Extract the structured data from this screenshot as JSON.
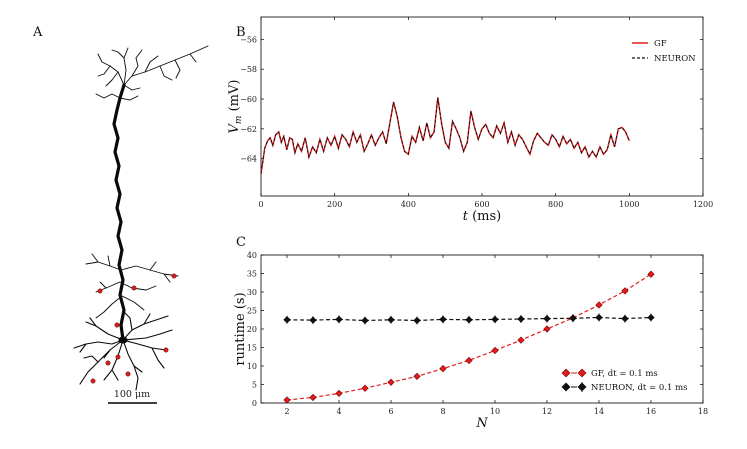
{
  "panels": {
    "a": "A",
    "b": "B",
    "c": "C"
  },
  "scale_bar": {
    "label": "100 μm"
  },
  "colors": {
    "gf": "#e31a1c",
    "neuron": "#111111",
    "dot": "#d62020",
    "morph": "#0a0a0a"
  },
  "chart_data": [
    {
      "id": "B",
      "type": "line",
      "title": "",
      "xlabel": "t (ms)",
      "ylabel": "V_m (mV)",
      "xlim": [
        0,
        1200
      ],
      "ylim": [
        -66.5,
        -54.5
      ],
      "xticks": [
        0,
        200,
        400,
        600,
        800,
        1000,
        1200
      ],
      "yticks": [
        -64,
        -62,
        -60,
        -58,
        -56
      ],
      "legend": {
        "position": "top-right",
        "entries": [
          "GF",
          "NEURON"
        ]
      },
      "series": [
        {
          "name": "GF",
          "style": "solid",
          "color": "#e31a1c",
          "x": [
            0,
            5,
            10,
            18,
            25,
            32,
            40,
            48,
            55,
            62,
            70,
            78,
            85,
            92,
            100,
            110,
            120,
            130,
            140,
            150,
            160,
            170,
            180,
            190,
            200,
            210,
            220,
            230,
            240,
            250,
            260,
            270,
            280,
            290,
            300,
            310,
            320,
            330,
            340,
            350,
            360,
            370,
            380,
            390,
            400,
            410,
            420,
            430,
            440,
            450,
            460,
            470,
            480,
            490,
            500,
            510,
            520,
            530,
            540,
            550,
            560,
            570,
            580,
            590,
            600,
            610,
            620,
            630,
            640,
            650,
            660,
            670,
            680,
            690,
            700,
            710,
            720,
            730,
            740,
            750,
            760,
            770,
            780,
            790,
            800,
            810,
            820,
            830,
            840,
            850,
            860,
            870,
            880,
            890,
            900,
            910,
            920,
            930,
            940,
            950,
            960,
            970,
            980,
            990,
            1000
          ],
          "values": [
            -65.0,
            -64.2,
            -63.3,
            -62.8,
            -62.6,
            -63.1,
            -62.4,
            -62.2,
            -62.9,
            -62.5,
            -63.4,
            -62.6,
            -62.7,
            -63.6,
            -63.0,
            -63.5,
            -62.6,
            -63.9,
            -63.2,
            -63.6,
            -62.7,
            -63.5,
            -62.6,
            -63.1,
            -62.5,
            -63.3,
            -62.4,
            -62.7,
            -63.2,
            -62.2,
            -62.9,
            -62.4,
            -63.5,
            -63.0,
            -62.4,
            -63.1,
            -62.6,
            -62.2,
            -63.0,
            -61.6,
            -60.2,
            -61.2,
            -62.6,
            -63.5,
            -63.7,
            -62.5,
            -62.9,
            -61.9,
            -62.8,
            -61.6,
            -62.6,
            -62.2,
            -59.9,
            -61.6,
            -62.9,
            -63.3,
            -61.5,
            -62.0,
            -62.6,
            -63.5,
            -62.9,
            -60.8,
            -61.9,
            -62.7,
            -62.0,
            -61.7,
            -62.3,
            -62.6,
            -61.8,
            -62.3,
            -61.6,
            -62.9,
            -62.2,
            -63.1,
            -62.4,
            -62.7,
            -63.2,
            -63.7,
            -62.8,
            -62.3,
            -62.6,
            -62.9,
            -63.1,
            -62.4,
            -62.7,
            -63.2,
            -62.5,
            -63.0,
            -62.7,
            -63.3,
            -62.9,
            -63.6,
            -63.2,
            -63.9,
            -63.5,
            -63.9,
            -63.2,
            -63.7,
            -63.4,
            -62.4,
            -63.2,
            -62.0,
            -61.9,
            -62.2,
            -62.8
          ]
        },
        {
          "name": "NEURON",
          "style": "dashed",
          "color": "#111111",
          "x": [
            0,
            5,
            10,
            18,
            25,
            32,
            40,
            48,
            55,
            62,
            70,
            78,
            85,
            92,
            100,
            110,
            120,
            130,
            140,
            150,
            160,
            170,
            180,
            190,
            200,
            210,
            220,
            230,
            240,
            250,
            260,
            270,
            280,
            290,
            300,
            310,
            320,
            330,
            340,
            350,
            360,
            370,
            380,
            390,
            400,
            410,
            420,
            430,
            440,
            450,
            460,
            470,
            480,
            490,
            500,
            510,
            520,
            530,
            540,
            550,
            560,
            570,
            580,
            590,
            600,
            610,
            620,
            630,
            640,
            650,
            660,
            670,
            680,
            690,
            700,
            710,
            720,
            730,
            740,
            750,
            760,
            770,
            780,
            790,
            800,
            810,
            820,
            830,
            840,
            850,
            860,
            870,
            880,
            890,
            900,
            910,
            920,
            930,
            940,
            950,
            960,
            970,
            980,
            990,
            1000
          ],
          "values": [
            -65.0,
            -64.2,
            -63.3,
            -62.8,
            -62.6,
            -63.1,
            -62.4,
            -62.2,
            -62.9,
            -62.5,
            -63.4,
            -62.6,
            -62.7,
            -63.6,
            -63.0,
            -63.5,
            -62.6,
            -63.9,
            -63.2,
            -63.6,
            -62.7,
            -63.5,
            -62.6,
            -63.1,
            -62.5,
            -63.3,
            -62.4,
            -62.7,
            -63.2,
            -62.2,
            -62.9,
            -62.4,
            -63.5,
            -63.0,
            -62.4,
            -63.1,
            -62.6,
            -62.2,
            -63.0,
            -61.6,
            -60.2,
            -61.2,
            -62.6,
            -63.5,
            -63.7,
            -62.5,
            -62.9,
            -61.9,
            -62.8,
            -61.6,
            -62.6,
            -62.2,
            -59.9,
            -61.6,
            -62.9,
            -63.3,
            -61.5,
            -62.0,
            -62.6,
            -63.5,
            -62.9,
            -60.8,
            -61.9,
            -62.7,
            -62.0,
            -61.7,
            -62.3,
            -62.6,
            -61.8,
            -62.3,
            -61.6,
            -62.9,
            -62.2,
            -63.1,
            -62.4,
            -62.7,
            -63.2,
            -63.7,
            -62.8,
            -62.3,
            -62.6,
            -62.9,
            -63.1,
            -62.4,
            -62.7,
            -63.2,
            -62.5,
            -63.0,
            -62.7,
            -63.3,
            -62.9,
            -63.6,
            -63.2,
            -63.9,
            -63.5,
            -63.9,
            -63.2,
            -63.7,
            -63.4,
            -62.4,
            -63.2,
            -62.0,
            -61.9,
            -62.2,
            -62.8
          ]
        }
      ]
    },
    {
      "id": "C",
      "type": "line",
      "title": "",
      "xlabel": "N",
      "ylabel": "runtime (s)",
      "xlim": [
        1,
        18
      ],
      "ylim": [
        0,
        40
      ],
      "xticks": [
        2,
        4,
        6,
        8,
        10,
        12,
        14,
        16,
        18
      ],
      "yticks": [
        0,
        5,
        10,
        15,
        20,
        25,
        30,
        35,
        40
      ],
      "legend": {
        "position": "bottom-right",
        "entries": [
          "GF, dt = 0.1 ms",
          "NEURON, dt = 0.1 ms"
        ]
      },
      "x": [
        2,
        3,
        4,
        5,
        6,
        7,
        8,
        9,
        10,
        11,
        12,
        13,
        14,
        15,
        16
      ],
      "series": [
        {
          "name": "GF, dt = 0.1 ms",
          "marker": "diamond",
          "color": "#e31a1c",
          "values": [
            0.8,
            1.5,
            2.6,
            4.0,
            5.6,
            7.2,
            9.3,
            11.5,
            14.2,
            17.0,
            20.0,
            23.0,
            26.5,
            30.3,
            34.8
          ]
        },
        {
          "name": "NEURON, dt = 0.1 ms",
          "marker": "diamond",
          "color": "#111111",
          "values": [
            22.5,
            22.4,
            22.6,
            22.3,
            22.5,
            22.3,
            22.6,
            22.5,
            22.6,
            22.7,
            22.8,
            22.9,
            23.1,
            22.8,
            23.1
          ]
        }
      ]
    }
  ]
}
